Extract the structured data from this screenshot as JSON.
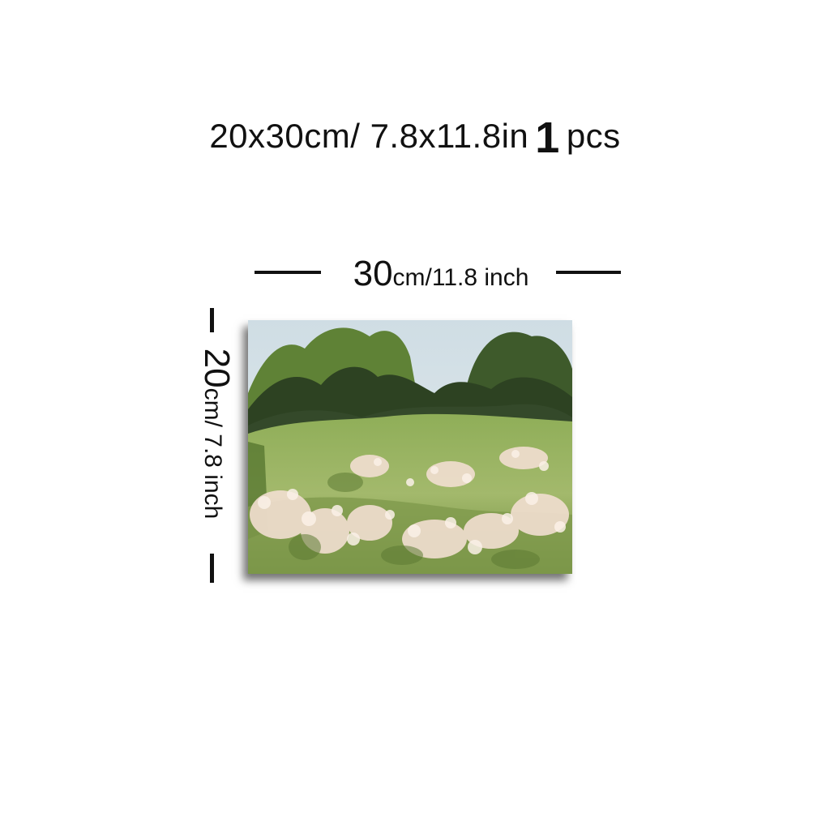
{
  "title": {
    "size_text": "20x30cm/ 7.8x11.8in",
    "quantity_number": "1",
    "quantity_unit": "pcs"
  },
  "width_dimension": {
    "value": "30",
    "unit_text": "cm/11.8 inch"
  },
  "height_dimension": {
    "value": "20",
    "unit_text": "cm/ 7.8 inch"
  },
  "painting": {
    "subject": "meadow-landscape-painting",
    "colors": {
      "sky": "#d9e5ea",
      "trees_dark": "#2f4424",
      "trees_light": "#6f8f40",
      "meadow": "#9bb565",
      "flowers": "#f1dccd"
    }
  }
}
